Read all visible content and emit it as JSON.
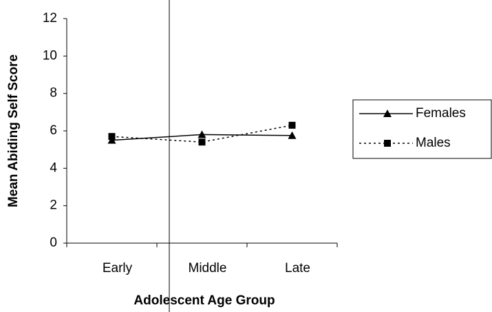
{
  "chart_data": {
    "type": "line",
    "categories": [
      "Early",
      "Middle",
      "Late"
    ],
    "series": [
      {
        "name": "Females",
        "color": "#000000",
        "linestyle": "solid",
        "marker": "triangle",
        "values": [
          5.5,
          5.8,
          5.75
        ]
      },
      {
        "name": "Males",
        "color": "#000000",
        "linestyle": "dotted",
        "marker": "square",
        "values": [
          5.7,
          5.4,
          6.3
        ]
      }
    ],
    "ylim": [
      0,
      12
    ],
    "yticks": [
      0,
      2,
      4,
      6,
      8,
      10,
      12
    ],
    "xlabel": "Adolescent Age Group",
    "ylabel": "Mean Abiding Self Score",
    "legend": "right"
  }
}
